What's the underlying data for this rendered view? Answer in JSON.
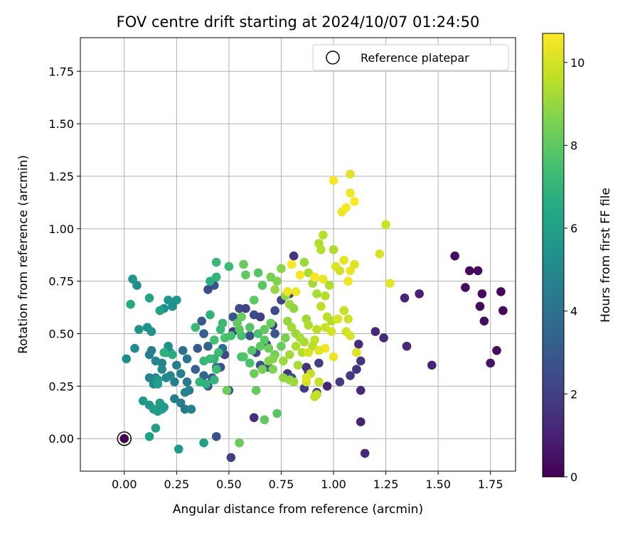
{
  "chart_data": {
    "type": "scatter",
    "title": "FOV centre drift starting at 2024/10/07 01:24:50",
    "xlabel": "Angular distance from reference (arcmin)",
    "ylabel": "Rotation from reference (arcmin)",
    "xlim": [
      -0.21,
      1.87
    ],
    "ylim": [
      -0.155,
      1.91
    ],
    "xticks": [
      0.0,
      0.25,
      0.5,
      0.75,
      1.0,
      1.25,
      1.5,
      1.75
    ],
    "xtick_labels": [
      "0.00",
      "0.25",
      "0.50",
      "0.75",
      "1.00",
      "1.25",
      "1.50",
      "1.75"
    ],
    "yticks": [
      0.0,
      0.25,
      0.5,
      0.75,
      1.0,
      1.25,
      1.5,
      1.75
    ],
    "ytick_labels": [
      "0.00",
      "0.25",
      "0.50",
      "0.75",
      "1.00",
      "1.25",
      "1.50",
      "1.75"
    ],
    "grid": true,
    "legend": {
      "entries": [
        "Reference platepar"
      ],
      "placement": "top-right"
    },
    "colorbar": {
      "label": "Hours from first FF file",
      "colormap": "viridis",
      "range": [
        0,
        10.7
      ],
      "ticks": [
        0,
        2,
        4,
        6,
        8,
        10
      ],
      "tick_labels": [
        "0",
        "2",
        "4",
        "6",
        "8",
        "10"
      ]
    },
    "reference_point": {
      "x": 0.0,
      "y": 0.0,
      "c": 0.0
    },
    "points": [
      [
        1.58,
        0.87,
        0.3
      ],
      [
        1.65,
        0.8,
        0.2
      ],
      [
        1.69,
        0.8,
        0.2
      ],
      [
        1.63,
        0.72,
        0.4
      ],
      [
        1.71,
        0.69,
        0.3
      ],
      [
        1.7,
        0.63,
        0.3
      ],
      [
        1.72,
        0.56,
        0.4
      ],
      [
        1.8,
        0.7,
        0.1
      ],
      [
        1.81,
        0.61,
        0.2
      ],
      [
        1.78,
        0.42,
        0.4
      ],
      [
        1.75,
        0.36,
        0.6
      ],
      [
        1.41,
        0.69,
        1.0
      ],
      [
        1.34,
        0.67,
        1.1
      ],
      [
        1.35,
        0.44,
        1.2
      ],
      [
        1.47,
        0.35,
        1.1
      ],
      [
        1.24,
        0.48,
        1.3
      ],
      [
        1.2,
        0.51,
        1.2
      ],
      [
        1.12,
        0.45,
        1.4
      ],
      [
        1.13,
        0.37,
        1.6
      ],
      [
        1.11,
        0.33,
        1.6
      ],
      [
        1.08,
        0.3,
        1.8
      ],
      [
        1.13,
        0.23,
        1.3
      ],
      [
        1.13,
        0.08,
        1.0
      ],
      [
        1.15,
        -0.07,
        1.2
      ],
      [
        1.03,
        0.27,
        1.8
      ],
      [
        0.97,
        0.25,
        1.1
      ],
      [
        0.92,
        0.22,
        1.7
      ],
      [
        0.87,
        0.34,
        1.5
      ],
      [
        0.88,
        0.32,
        1.6
      ],
      [
        0.93,
        0.36,
        1.9
      ],
      [
        0.81,
        0.87,
        1.6
      ],
      [
        0.79,
        0.69,
        1.9
      ],
      [
        0.75,
        0.66,
        2.2
      ],
      [
        0.72,
        0.61,
        2.3
      ],
      [
        0.71,
        0.54,
        2.0
      ],
      [
        0.78,
        0.31,
        1.7
      ],
      [
        0.8,
        0.29,
        2.5
      ],
      [
        0.86,
        0.24,
        1.9
      ],
      [
        0.62,
        0.1,
        1.4
      ],
      [
        0.51,
        -0.09,
        2.0
      ],
      [
        0.44,
        0.01,
        2.6
      ],
      [
        0.5,
        0.23,
        2.8
      ],
      [
        0.46,
        0.34,
        2.7
      ],
      [
        0.48,
        0.4,
        2.2
      ],
      [
        0.52,
        0.51,
        2.1
      ],
      [
        0.55,
        0.62,
        2.4
      ],
      [
        0.52,
        0.58,
        2.9
      ],
      [
        0.58,
        0.62,
        2.0
      ],
      [
        0.62,
        0.59,
        2.5
      ],
      [
        0.65,
        0.58,
        2.0
      ],
      [
        0.6,
        0.49,
        2.8
      ],
      [
        0.63,
        0.41,
        2.3
      ],
      [
        0.65,
        0.35,
        2.6
      ],
      [
        0.68,
        0.45,
        2.2
      ],
      [
        0.72,
        0.5,
        2.9
      ],
      [
        0.69,
        0.34,
        2.7
      ],
      [
        0.4,
        0.71,
        2.5
      ],
      [
        0.43,
        0.73,
        2.7
      ],
      [
        0.37,
        0.56,
        3.0
      ],
      [
        0.38,
        0.5,
        3.2
      ],
      [
        0.4,
        0.44,
        3.4
      ],
      [
        0.35,
        0.43,
        3.0
      ],
      [
        0.34,
        0.33,
        3.3
      ],
      [
        0.38,
        0.3,
        3.6
      ],
      [
        0.42,
        0.29,
        3.1
      ],
      [
        0.44,
        0.34,
        3.4
      ],
      [
        0.4,
        0.25,
        3.2
      ],
      [
        0.47,
        0.43,
        3.8
      ],
      [
        0.28,
        0.42,
        4.0
      ],
      [
        0.3,
        0.38,
        4.2
      ],
      [
        0.25,
        0.35,
        4.4
      ],
      [
        0.27,
        0.31,
        4.6
      ],
      [
        0.3,
        0.27,
        4.3
      ],
      [
        0.31,
        0.23,
        4.5
      ],
      [
        0.29,
        0.22,
        4.7
      ],
      [
        0.24,
        0.27,
        4.6
      ],
      [
        0.24,
        0.19,
        4.4
      ],
      [
        0.27,
        0.17,
        4.5
      ],
      [
        0.29,
        0.14,
        4.3
      ],
      [
        0.32,
        0.14,
        4.7
      ],
      [
        0.22,
        0.3,
        4.9
      ],
      [
        0.2,
        0.29,
        5.0
      ],
      [
        0.18,
        0.36,
        4.7
      ],
      [
        0.15,
        0.29,
        4.9
      ],
      [
        0.14,
        0.26,
        5.1
      ],
      [
        0.12,
        0.29,
        4.8
      ],
      [
        0.12,
        0.4,
        4.5
      ],
      [
        0.13,
        0.42,
        4.6
      ],
      [
        0.15,
        0.37,
        4.8
      ],
      [
        0.18,
        0.33,
        5.0
      ],
      [
        0.2,
        0.41,
        5.2
      ],
      [
        0.21,
        0.44,
        5.3
      ],
      [
        0.22,
        0.41,
        5.4
      ],
      [
        0.11,
        0.53,
        5.3
      ],
      [
        0.07,
        0.52,
        5.4
      ],
      [
        0.13,
        0.51,
        5.4
      ],
      [
        0.05,
        0.43,
        5.1
      ],
      [
        0.01,
        0.38,
        5.2
      ],
      [
        0.04,
        0.76,
        5.5
      ],
      [
        0.06,
        0.73,
        5.2
      ],
      [
        0.19,
        0.62,
        5.3
      ],
      [
        0.21,
        0.66,
        5.6
      ],
      [
        0.25,
        0.66,
        5.5
      ],
      [
        0.23,
        0.63,
        5.3
      ],
      [
        0.26,
        -0.05,
        5.7
      ],
      [
        0.16,
        0.28,
        5.8
      ],
      [
        0.16,
        0.26,
        5.9
      ],
      [
        0.09,
        0.18,
        5.7
      ],
      [
        0.12,
        0.16,
        5.6
      ],
      [
        0.14,
        0.14,
        5.8
      ],
      [
        0.16,
        0.13,
        5.9
      ],
      [
        0.18,
        0.14,
        6.0
      ],
      [
        0.17,
        0.15,
        5.7
      ],
      [
        0.17,
        0.17,
        5.9
      ],
      [
        0.19,
        0.15,
        5.8
      ],
      [
        0.12,
        0.01,
        6.0
      ],
      [
        0.15,
        0.05,
        5.9
      ],
      [
        0.38,
        -0.02,
        6.0
      ],
      [
        0.17,
        0.61,
        6.1
      ],
      [
        0.12,
        0.67,
        6.3
      ],
      [
        0.03,
        0.64,
        6.5
      ],
      [
        0.23,
        0.4,
        6.6
      ],
      [
        0.19,
        0.41,
        6.8
      ],
      [
        0.41,
        0.75,
        6.7
      ],
      [
        0.44,
        0.77,
        7.0
      ],
      [
        0.5,
        0.82,
        7.2
      ],
      [
        0.44,
        0.84,
        7.1
      ],
      [
        0.41,
        0.59,
        6.9
      ],
      [
        0.46,
        0.52,
        7.1
      ],
      [
        0.47,
        0.55,
        7.2
      ],
      [
        0.43,
        0.47,
        7.4
      ],
      [
        0.48,
        0.48,
        7.6
      ],
      [
        0.51,
        0.49,
        7.5
      ],
      [
        0.45,
        0.41,
        7.3
      ],
      [
        0.43,
        0.38,
        7.0
      ],
      [
        0.44,
        0.33,
        7.3
      ],
      [
        0.38,
        0.37,
        7.1
      ],
      [
        0.41,
        0.38,
        7.2
      ],
      [
        0.36,
        0.27,
        7.0
      ],
      [
        0.39,
        0.26,
        6.9
      ],
      [
        0.43,
        0.28,
        7.0
      ],
      [
        0.34,
        0.53,
        7.2
      ],
      [
        0.56,
        0.49,
        7.5
      ],
      [
        0.56,
        0.39,
        7.4
      ],
      [
        0.57,
        0.39,
        7.7
      ],
      [
        0.6,
        0.36,
        7.6
      ],
      [
        0.61,
        0.42,
        7.8
      ],
      [
        0.6,
        0.53,
        7.8
      ],
      [
        0.64,
        0.5,
        7.6
      ],
      [
        0.65,
        0.44,
        8.0
      ],
      [
        0.67,
        0.47,
        7.9
      ],
      [
        0.67,
        0.52,
        8.1
      ],
      [
        0.7,
        0.55,
        8.2
      ],
      [
        0.69,
        0.43,
        8.3
      ],
      [
        0.72,
        0.4,
        8.4
      ],
      [
        0.75,
        0.44,
        8.2
      ],
      [
        0.77,
        0.48,
        8.5
      ],
      [
        0.62,
        0.66,
        8.0
      ],
      [
        0.64,
        0.79,
        7.8
      ],
      [
        0.66,
        0.73,
        7.9
      ],
      [
        0.58,
        0.78,
        8.0
      ],
      [
        0.57,
        0.83,
        8.2
      ],
      [
        0.55,
        0.52,
        7.9
      ],
      [
        0.54,
        0.55,
        8.1
      ],
      [
        0.56,
        0.58,
        8.2
      ],
      [
        0.63,
        0.23,
        8.1
      ],
      [
        0.67,
        0.09,
        8.0
      ],
      [
        0.73,
        0.12,
        7.9
      ],
      [
        0.55,
        -0.02,
        8.2
      ],
      [
        0.49,
        0.23,
        8.3
      ],
      [
        0.62,
        0.31,
        8.3
      ],
      [
        0.66,
        0.33,
        8.5
      ],
      [
        0.71,
        0.33,
        8.6
      ],
      [
        0.69,
        0.37,
        8.8
      ],
      [
        0.71,
        0.38,
        8.7
      ],
      [
        0.7,
        0.77,
        8.5
      ],
      [
        0.73,
        0.75,
        8.6
      ],
      [
        0.75,
        0.81,
        8.8
      ],
      [
        0.72,
        0.71,
        9.0
      ],
      [
        0.77,
        0.68,
        8.9
      ],
      [
        0.79,
        0.64,
        9.1
      ],
      [
        0.81,
        0.62,
        8.9
      ],
      [
        0.78,
        0.56,
        9.0
      ],
      [
        0.8,
        0.53,
        9.2
      ],
      [
        0.82,
        0.5,
        9.1
      ],
      [
        0.84,
        0.48,
        9.3
      ],
      [
        0.87,
        0.57,
        9.2
      ],
      [
        0.88,
        0.54,
        9.4
      ],
      [
        0.86,
        0.46,
        9.3
      ],
      [
        0.85,
        0.41,
        9.5
      ],
      [
        0.82,
        0.44,
        9.4
      ],
      [
        0.79,
        0.4,
        9.2
      ],
      [
        0.76,
        0.37,
        9.1
      ],
      [
        0.76,
        0.29,
        8.9
      ],
      [
        0.79,
        0.28,
        9.0
      ],
      [
        0.81,
        0.27,
        9.1
      ],
      [
        0.83,
        0.35,
        9.3
      ],
      [
        0.86,
        0.84,
        9.1
      ],
      [
        0.88,
        0.79,
        9.3
      ],
      [
        0.9,
        0.74,
        9.2
      ],
      [
        0.92,
        0.69,
        9.3
      ],
      [
        0.93,
        0.93,
        9.4
      ],
      [
        0.95,
        0.97,
        9.6
      ],
      [
        0.94,
        0.9,
        9.5
      ],
      [
        1.0,
        0.9,
        9.4
      ],
      [
        0.98,
        0.73,
        9.4
      ],
      [
        0.96,
        0.68,
        9.5
      ],
      [
        0.94,
        0.63,
        9.6
      ],
      [
        0.97,
        0.58,
        9.6
      ],
      [
        0.99,
        0.56,
        9.5
      ],
      [
        0.92,
        0.52,
        9.6
      ],
      [
        0.91,
        0.47,
        9.7
      ],
      [
        0.9,
        0.44,
        9.6
      ],
      [
        0.93,
        0.27,
        9.8
      ],
      [
        0.89,
        0.31,
        9.7
      ],
      [
        0.87,
        0.27,
        9.9
      ],
      [
        0.91,
        0.2,
        9.6
      ],
      [
        0.92,
        0.21,
        9.7
      ],
      [
        0.96,
        0.53,
        9.9
      ],
      [
        0.99,
        0.51,
        10.0
      ],
      [
        1.02,
        0.57,
        10.1
      ],
      [
        1.05,
        0.61,
        9.8
      ],
      [
        1.07,
        0.57,
        9.9
      ],
      [
        1.06,
        0.51,
        10.0
      ],
      [
        1.08,
        0.49,
        10.1
      ],
      [
        1.01,
        0.82,
        10.2
      ],
      [
        1.03,
        0.8,
        10.0
      ],
      [
        1.05,
        0.85,
        10.3
      ],
      [
        1.08,
        0.8,
        10.4
      ],
      [
        1.1,
        0.83,
        10.2
      ],
      [
        1.07,
        0.75,
        10.5
      ],
      [
        1.04,
        1.08,
        10.4
      ],
      [
        1.06,
        1.1,
        10.6
      ],
      [
        1.08,
        1.17,
        10.5
      ],
      [
        1.1,
        1.13,
        10.7
      ],
      [
        1.08,
        1.26,
        10.2
      ],
      [
        1.0,
        1.23,
        10.6
      ],
      [
        1.22,
        0.88,
        10.1
      ],
      [
        1.25,
        1.02,
        9.9
      ],
      [
        1.27,
        0.74,
        10.3
      ],
      [
        1.0,
        0.39,
        10.4
      ],
      [
        1.11,
        0.41,
        10.2
      ],
      [
        0.96,
        0.43,
        10.5
      ],
      [
        0.93,
        0.42,
        10.3
      ],
      [
        0.88,
        0.41,
        10.1
      ],
      [
        0.87,
        0.29,
        10.2
      ],
      [
        0.84,
        0.78,
        10.6
      ],
      [
        0.82,
        0.7,
        10.5
      ],
      [
        0.8,
        0.83,
        10.7
      ],
      [
        0.78,
        0.7,
        10.4
      ],
      [
        0.91,
        0.77,
        10.6
      ],
      [
        0.95,
        0.76,
        10.4
      ]
    ]
  }
}
